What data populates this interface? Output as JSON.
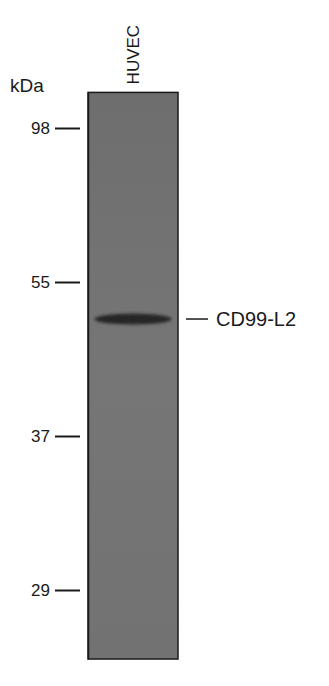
{
  "chart_data": {
    "type": "blot",
    "ylabel": "kDa",
    "categories": [
      "HUVEC"
    ],
    "series": [
      {
        "name": "CD99-L2",
        "color": "#262626",
        "values": [
          50
        ]
      }
    ],
    "ylim": [
      112,
      26
    ],
    "yticks": [
      98,
      55,
      37,
      29
    ],
    "log": "y"
  }
}
